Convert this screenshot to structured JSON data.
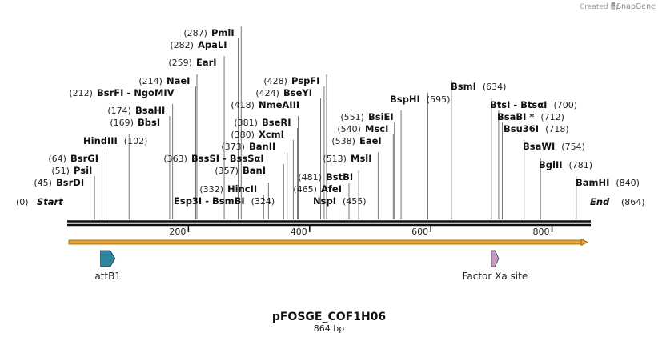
{
  "map": {
    "name": "pFOSGE_COF1H06",
    "length_label": "864 bp",
    "length": 864,
    "credit_prefix": "Created by",
    "credit_brand": "SnapGene",
    "start_label": "Start",
    "end_label": "End",
    "start_pos": "(0)",
    "end_pos": "(864)"
  },
  "ticks": [
    {
      "value": 200,
      "label": "200"
    },
    {
      "value": 400,
      "label": "400"
    },
    {
      "value": 600,
      "label": "600"
    },
    {
      "value": 800,
      "label": "800"
    }
  ],
  "sites": [
    {
      "name": "BsrDI",
      "pos": 45,
      "pos_label": "(45)"
    },
    {
      "name": "PsiI",
      "pos": 51,
      "pos_label": "(51)"
    },
    {
      "name": "BsrGI",
      "pos": 64,
      "pos_label": "(64)"
    },
    {
      "name": "HindIII",
      "pos": 102,
      "pos_label": "(102)"
    },
    {
      "name": "BbsI",
      "pos": 169,
      "pos_label": "(169)"
    },
    {
      "name": "BsaHI",
      "pos": 174,
      "pos_label": "(174)"
    },
    {
      "name": "BsrFI - NgoMIV",
      "pos": 212,
      "pos_label": "(212)"
    },
    {
      "name": "NaeI",
      "pos": 214,
      "pos_label": "(214)"
    },
    {
      "name": "EarI",
      "pos": 259,
      "pos_label": "(259)"
    },
    {
      "name": "ApaLI",
      "pos": 282,
      "pos_label": "(282)"
    },
    {
      "name": "PmlI",
      "pos": 287,
      "pos_label": "(287)"
    },
    {
      "name": "Esp3I - BsmBI",
      "pos": 324,
      "pos_label": "(324)"
    },
    {
      "name": "HincII",
      "pos": 332,
      "pos_label": "(332)"
    },
    {
      "name": "BanI",
      "pos": 357,
      "pos_label": "(357)"
    },
    {
      "name": "BssSI - BssSαI",
      "pos": 363,
      "pos_label": "(363)"
    },
    {
      "name": "BanII",
      "pos": 373,
      "pos_label": "(373)"
    },
    {
      "name": "XcmI",
      "pos": 380,
      "pos_label": "(380)"
    },
    {
      "name": "BseRI",
      "pos": 381,
      "pos_label": "(381)"
    },
    {
      "name": "NmeAIII",
      "pos": 418,
      "pos_label": "(418)"
    },
    {
      "name": "BseYI",
      "pos": 424,
      "pos_label": "(424)"
    },
    {
      "name": "PspFI",
      "pos": 428,
      "pos_label": "(428)"
    },
    {
      "name": "NspI",
      "pos": 455,
      "pos_label": "(455)"
    },
    {
      "name": "AfeI",
      "pos": 465,
      "pos_label": "(465)"
    },
    {
      "name": "BstBI",
      "pos": 481,
      "pos_label": "(481)"
    },
    {
      "name": "MslI",
      "pos": 513,
      "pos_label": "(513)"
    },
    {
      "name": "EaeI",
      "pos": 538,
      "pos_label": "(538)"
    },
    {
      "name": "MscI",
      "pos": 540,
      "pos_label": "(540)"
    },
    {
      "name": "BsiEI",
      "pos": 551,
      "pos_label": "(551)"
    },
    {
      "name": "BspHI",
      "pos": 595,
      "pos_label": "(595)"
    },
    {
      "name": "BsmI",
      "pos": 634,
      "pos_label": "(634)"
    },
    {
      "name": "BtsI - BtsαI",
      "pos": 700,
      "pos_label": "(700)"
    },
    {
      "name": "BsaBI *",
      "pos": 712,
      "pos_label": "(712)"
    },
    {
      "name": "Bsu36I",
      "pos": 718,
      "pos_label": "(718)"
    },
    {
      "name": "BsaWI",
      "pos": 754,
      "pos_label": "(754)"
    },
    {
      "name": "BglII",
      "pos": 781,
      "pos_label": "(781)"
    },
    {
      "name": "BamHI",
      "pos": 840,
      "pos_label": "(840)"
    }
  ],
  "features": [
    {
      "name": "attB1",
      "start": 55,
      "end": 79,
      "color": "#2e87a0",
      "direction": "forward"
    },
    {
      "name": "Factor Xa site",
      "start": 700,
      "end": 712,
      "color": "#c899c5",
      "direction": "forward"
    }
  ],
  "orf": {
    "start": 0,
    "end": 864,
    "color": "#e8a830"
  }
}
